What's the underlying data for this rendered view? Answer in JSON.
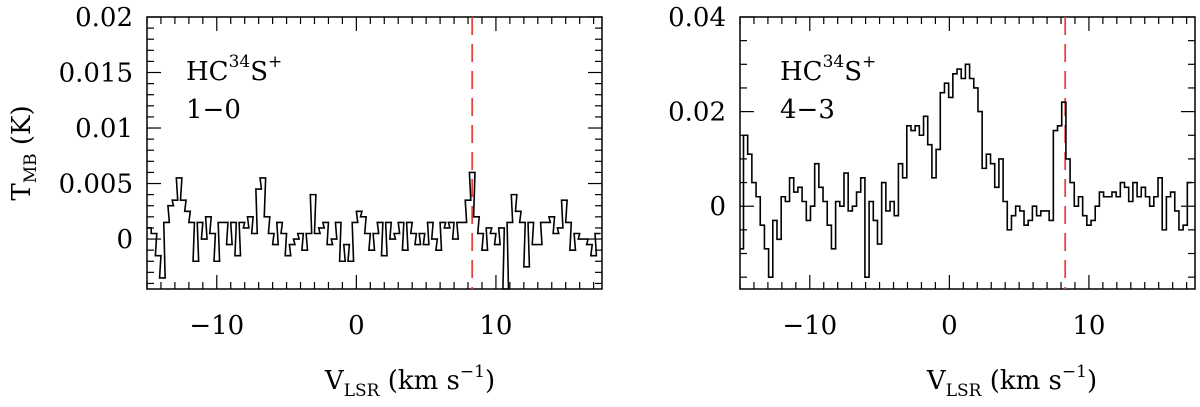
{
  "chart_data": [
    {
      "type": "line",
      "style": "step",
      "label_main": "HC",
      "label_sup1": "34",
      "label_mid": "S",
      "label_sup2": "+",
      "label_line2": "1−0",
      "ylabel_main": "T",
      "ylabel_sub": "MB",
      "ylabel_unit": " (K)",
      "xlabel_main": "V",
      "xlabel_sub": "LSR",
      "xlabel_unit": " (km s",
      "xlabel_sup": "−1",
      "xlabel_close": ")",
      "xlim": [
        -15,
        17.6
      ],
      "ylim": [
        -0.0045,
        0.02
      ],
      "xticks": [
        -10,
        0,
        10
      ],
      "xtick_labels": [
        "−10",
        "0",
        "10"
      ],
      "yticks": [
        0,
        0.005,
        0.01,
        0.015,
        0.02
      ],
      "ytick_labels": [
        "0",
        "0.005",
        "0.01",
        "0.015",
        "0.02"
      ],
      "marker_line": {
        "x": 8.3,
        "color": "#e8423f",
        "style": "dashed"
      },
      "series": [
        {
          "x": [
            -14.9,
            -14.5,
            -14.2,
            -13.9,
            -13.6,
            -13.3,
            -13.0,
            -12.7,
            -12.4,
            -12.1,
            -11.8,
            -11.5,
            -11.2,
            -10.9,
            -10.6,
            -10.3,
            -10.0,
            -9.7,
            -9.4,
            -9.1,
            -8.8,
            -8.5,
            -8.2,
            -7.9,
            -7.6,
            -7.3,
            -7.0,
            -6.7,
            -6.4,
            -6.1,
            -5.8,
            -5.5,
            -5.2,
            -4.9,
            -4.6,
            -4.3,
            -4.0,
            -3.7,
            -3.4,
            -3.1,
            -2.8,
            -2.5,
            -2.2,
            -1.9,
            -1.6,
            -1.3,
            -1.0,
            -0.7,
            -0.4,
            -0.1,
            0.2,
            0.5,
            0.8,
            1.1,
            1.4,
            1.7,
            2.0,
            2.3,
            2.6,
            2.9,
            3.2,
            3.5,
            3.8,
            4.1,
            4.4,
            4.7,
            5.0,
            5.3,
            5.6,
            5.9,
            6.2,
            6.5,
            6.8,
            7.1,
            7.4,
            7.7,
            8.0,
            8.3,
            8.6,
            8.9,
            9.2,
            9.5,
            9.8,
            10.1,
            10.4,
            10.7,
            11.0,
            11.3,
            11.6,
            11.9,
            12.2,
            12.5,
            12.8,
            13.1,
            13.4,
            13.7,
            14.0,
            14.3,
            14.6,
            14.9,
            15.2,
            15.5,
            15.8,
            16.1,
            16.4,
            16.7,
            17.0,
            17.3
          ],
          "y": [
            0.001,
            0.0005,
            -0.0015,
            -0.0035,
            0.0015,
            0.003,
            0.0035,
            0.0055,
            0.0035,
            0.0025,
            0.0015,
            -0.002,
            0.0015,
            0.0,
            0.002,
            0.0005,
            -0.002,
            0.0015,
            0.0015,
            -0.0005,
            0.0015,
            -0.0015,
            0.0015,
            0.001,
            0.002,
            0.0005,
            0.0045,
            0.0055,
            0.002,
            0.0005,
            -0.0005,
            0.0015,
            0.0005,
            -0.0015,
            -0.0005,
            0.0,
            0.0005,
            -0.001,
            0.0005,
            0.004,
            0.0005,
            0.001,
            0.0015,
            -0.0005,
            0.0,
            0.0015,
            -0.002,
            -0.0005,
            -0.002,
            0.0015,
            0.0025,
            0.002,
            0.0005,
            -0.001,
            0.0005,
            0.0015,
            -0.0015,
            0.0015,
            0.0,
            0.0005,
            0.0015,
            -0.001,
            0.0015,
            0.0005,
            -0.0005,
            0.0005,
            -0.0005,
            0.0015,
            0.0,
            -0.001,
            0.0015,
            0.001,
            0.0015,
            0.0,
            0.0015,
            0.0015,
            0.0035,
            0.006,
            0.002,
            0.0005,
            -0.001,
            0.001,
            0.0005,
            -0.0005,
            0.001,
            -0.0045,
            0.0015,
            0.004,
            0.0025,
            0.0015,
            -0.0025,
            0.0015,
            -0.0005,
            -0.0005,
            0.0015,
            0.0015,
            0.002,
            0.0005,
            0.001,
            0.0035,
            0.0015,
            -0.001,
            0.0005,
            0.0,
            0.0,
            -0.0005,
            -0.0015,
            0.0005
          ]
        }
      ]
    },
    {
      "type": "line",
      "style": "step",
      "label_main": "HC",
      "label_sup1": "34",
      "label_mid": "S",
      "label_sup2": "+",
      "label_line2": "4−3",
      "xlabel_main": "V",
      "xlabel_sub": "LSR",
      "xlabel_unit": " (km s",
      "xlabel_sup": "−1",
      "xlabel_close": ")",
      "xlim": [
        -15,
        17.6
      ],
      "ylim": [
        -0.0175,
        0.04
      ],
      "xticks": [
        -10,
        0,
        10
      ],
      "xtick_labels": [
        "−10",
        "0",
        "10"
      ],
      "yticks": [
        0,
        0.02,
        0.04
      ],
      "ytick_labels": [
        "0",
        "0.02",
        "0.04"
      ],
      "marker_line": {
        "x": 8.3,
        "color": "#e8423f",
        "style": "dashed"
      },
      "series": [
        {
          "x": [
            -14.9,
            -14.6,
            -14.3,
            -14.0,
            -13.7,
            -13.4,
            -13.1,
            -12.8,
            -12.5,
            -12.2,
            -11.9,
            -11.6,
            -11.3,
            -11.0,
            -10.7,
            -10.4,
            -10.1,
            -9.8,
            -9.5,
            -9.2,
            -8.9,
            -8.6,
            -8.3,
            -8.0,
            -7.7,
            -7.4,
            -7.1,
            -6.8,
            -6.5,
            -6.2,
            -5.9,
            -5.6,
            -5.3,
            -5.0,
            -4.7,
            -4.4,
            -4.1,
            -3.8,
            -3.5,
            -3.2,
            -2.9,
            -2.6,
            -2.3,
            -2.0,
            -1.7,
            -1.4,
            -1.1,
            -0.8,
            -0.5,
            -0.2,
            0.1,
            0.4,
            0.7,
            1.0,
            1.3,
            1.6,
            1.9,
            2.2,
            2.5,
            2.8,
            3.1,
            3.4,
            3.7,
            4.0,
            4.3,
            4.6,
            4.9,
            5.2,
            5.5,
            5.8,
            6.1,
            6.4,
            6.7,
            7.0,
            7.3,
            7.6,
            7.9,
            8.2,
            8.5,
            8.8,
            9.1,
            9.4,
            9.7,
            10.0,
            10.3,
            10.6,
            10.9,
            11.2,
            11.5,
            11.8,
            12.1,
            12.4,
            12.7,
            13.0,
            13.3,
            13.6,
            13.9,
            14.2,
            14.5,
            14.8,
            15.1,
            15.4,
            15.7,
            16.0,
            16.3,
            16.6,
            16.9,
            17.2
          ],
          "y": [
            -0.009,
            0.015,
            0.011,
            0.005,
            0.002,
            -0.004,
            -0.009,
            -0.015,
            -0.003,
            -0.007,
            0.002,
            0.001,
            0.006,
            0.003,
            0.004,
            0.001,
            -0.003,
            0.0,
            0.009,
            0.004,
            0.001,
            -0.004,
            -0.009,
            0.001,
            0.0,
            0.007,
            -0.001,
            0.0,
            0.003,
            0.006,
            -0.015,
            0.001,
            -0.003,
            -0.008,
            0.005,
            -0.001,
            0.001,
            -0.002,
            0.009,
            0.006,
            0.017,
            0.016,
            0.017,
            0.015,
            0.019,
            0.013,
            0.006,
            0.012,
            0.024,
            0.026,
            0.023,
            0.028,
            0.029,
            0.027,
            0.03,
            0.027,
            0.025,
            0.02,
            0.008,
            0.011,
            0.009,
            0.004,
            0.01,
            0.001,
            -0.005,
            -0.002,
            0.0,
            -0.001,
            -0.004,
            -0.003,
            0.0,
            -0.002,
            -0.001,
            -0.001,
            -0.003,
            0.016,
            0.017,
            0.022,
            0.01,
            0.005,
            0.0,
            0.002,
            -0.002,
            -0.004,
            -0.003,
            0.0,
            0.003,
            0.002,
            0.002,
            0.003,
            0.002,
            0.005,
            0.004,
            0.001,
            0.005,
            0.002,
            0.004,
            0.002,
            0.0,
            0.002,
            0.006,
            -0.005,
            0.002,
            0.003,
            -0.001,
            -0.005,
            -0.004,
            0.005
          ]
        }
      ]
    }
  ]
}
